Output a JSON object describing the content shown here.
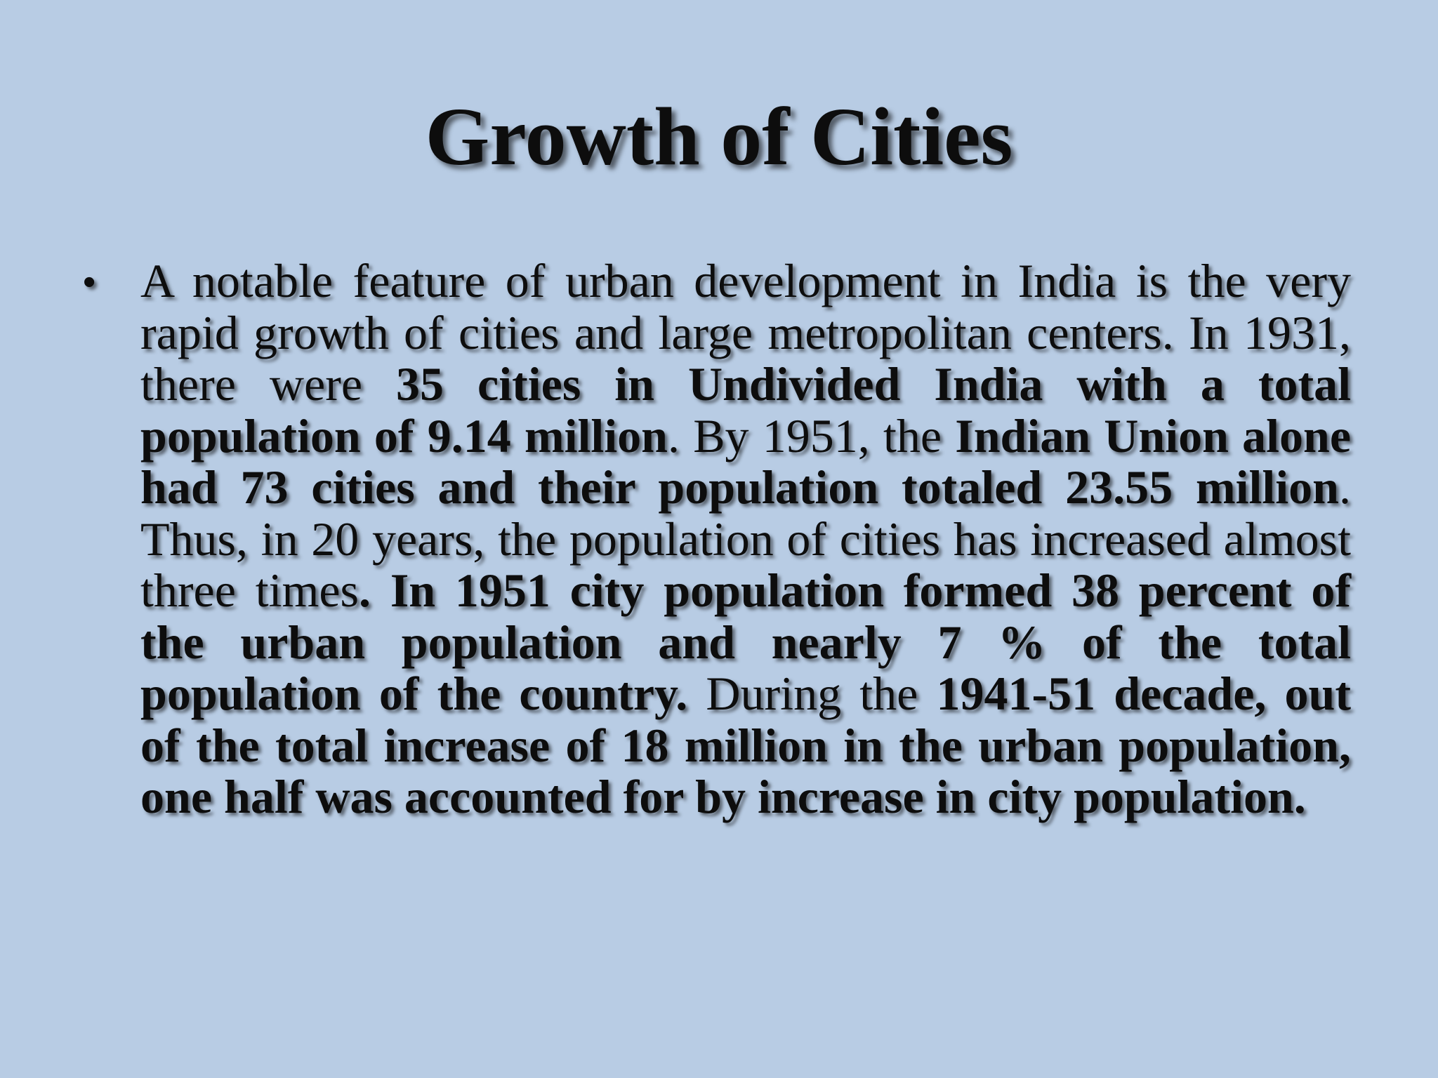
{
  "slide": {
    "title": "Growth of Cities",
    "bullet_symbol": "•",
    "paragraph": [
      {
        "text": "A notable feature of urban development in India is the very rapid growth of cities and large metropolitan centers. In 1931, there were ",
        "bold": false
      },
      {
        "text": "35 cities in Undivided India with a total population of 9.14 million",
        "bold": true
      },
      {
        "text": ". By 1951, the ",
        "bold": false
      },
      {
        "text": "Indian Union alone had 73 cities and their population totaled 23.55 million",
        "bold": true
      },
      {
        "text": ". Thus, in 20 years, the population of cities has increased almost three times",
        "bold": false
      },
      {
        "text": ". In 1951 city population formed 38 percent of the urban population and nearly 7 % of the total population of the country.",
        "bold": true
      },
      {
        "text": " During the ",
        "bold": false
      },
      {
        "text": "1941-51 decade, out of the total increase of 18 million in the urban population, one half was accounted for by increase in city population.",
        "bold": true
      }
    ]
  }
}
